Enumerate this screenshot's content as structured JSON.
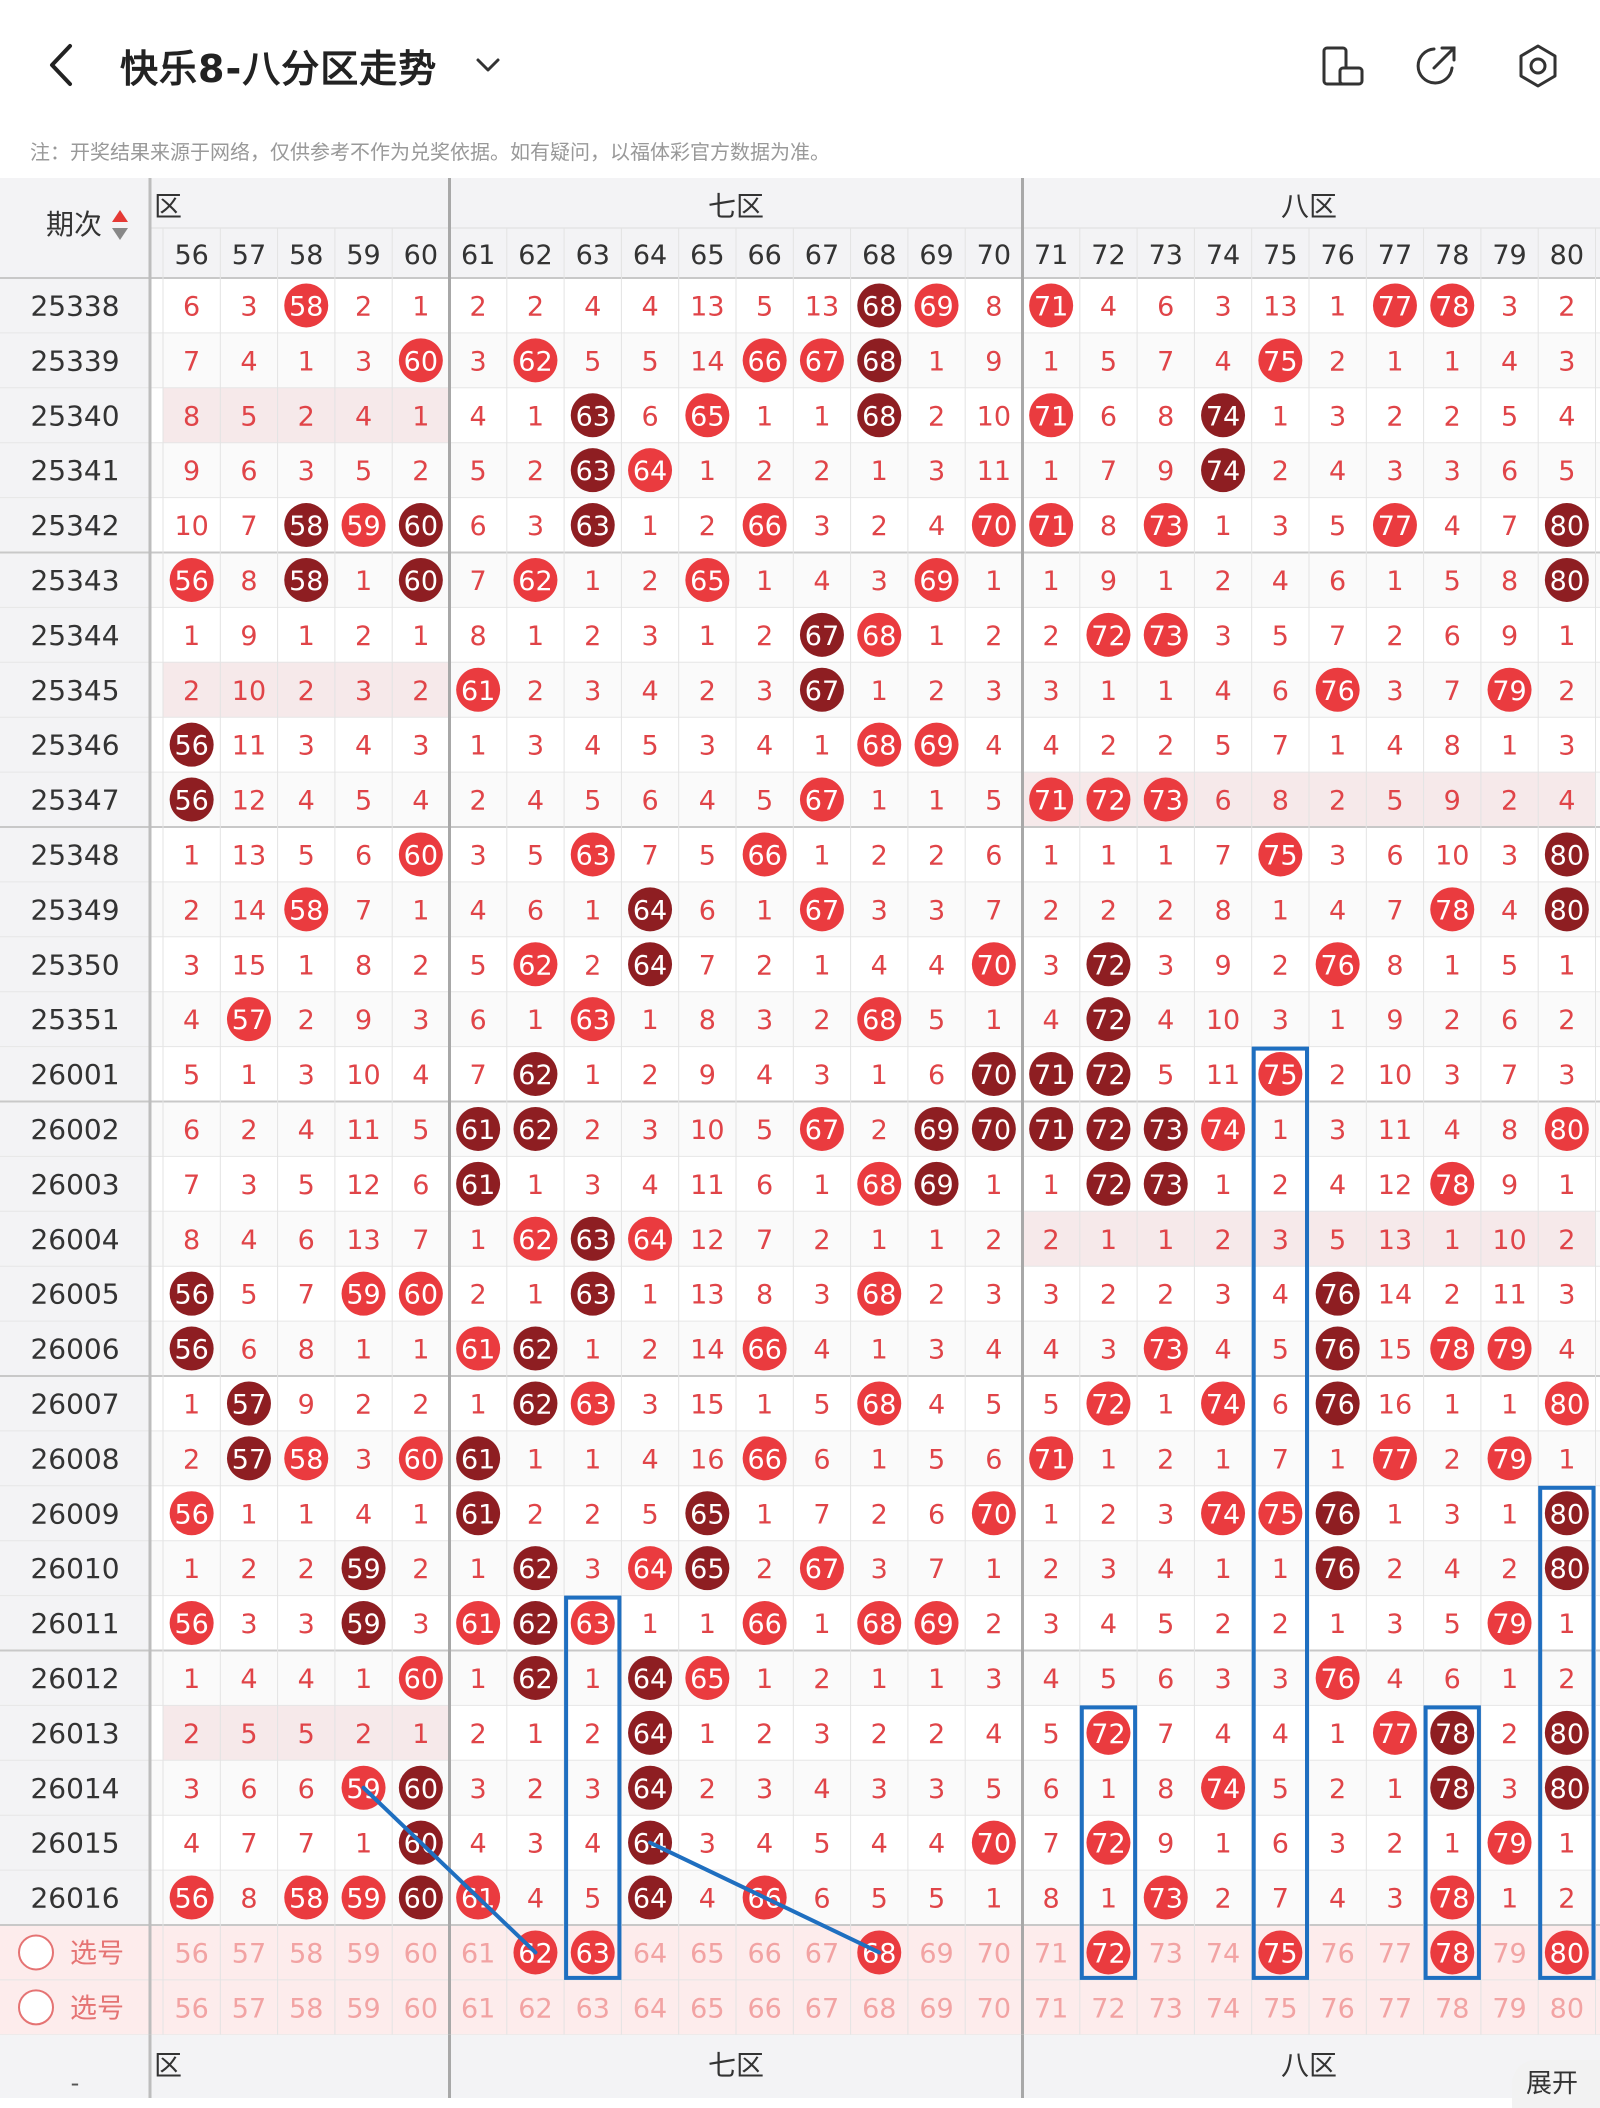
{
  "header": {
    "title": "快乐8-八分区走势",
    "icons": [
      "back-arrow-icon",
      "chevron-down-icon",
      "phone-rotate-icon",
      "share-icon",
      "settings-icon"
    ]
  },
  "note": "注：开奖结果来源于网络，仅供参考不作为兑奖依据。如有疑问，以福体彩官方数据为准。",
  "table": {
    "period_header": "期次",
    "zones": [
      {
        "label": "六区",
        "shown": "区"
      },
      {
        "label": "七区",
        "shown": "七区"
      },
      {
        "label": "八区",
        "shown": "八区"
      }
    ],
    "columns": [
      56,
      57,
      58,
      59,
      60,
      61,
      62,
      63,
      64,
      65,
      66,
      67,
      68,
      69,
      70,
      71,
      72,
      73,
      74,
      75,
      76,
      77,
      78,
      79,
      80
    ],
    "rows": [
      {
        "period": "25338",
        "cells": [
          6,
          3,
          58,
          2,
          1,
          2,
          2,
          4,
          4,
          13,
          5,
          13,
          68,
          69,
          8,
          71,
          4,
          6,
          3,
          13,
          1,
          77,
          78,
          3,
          2
        ]
      },
      {
        "period": "25339",
        "cells": [
          7,
          4,
          1,
          3,
          60,
          3,
          62,
          5,
          5,
          14,
          66,
          67,
          68,
          1,
          9,
          1,
          5,
          7,
          4,
          75,
          2,
          1,
          1,
          4,
          3
        ]
      },
      {
        "period": "25340",
        "cells": [
          8,
          5,
          2,
          4,
          1,
          4,
          1,
          63,
          6,
          65,
          1,
          1,
          68,
          2,
          10,
          71,
          6,
          8,
          74,
          1,
          3,
          2,
          2,
          5,
          4
        ]
      },
      {
        "period": "25341",
        "cells": [
          9,
          6,
          3,
          5,
          2,
          5,
          2,
          63,
          64,
          1,
          2,
          2,
          1,
          3,
          11,
          1,
          7,
          9,
          74,
          2,
          4,
          3,
          3,
          6,
          5
        ]
      },
      {
        "period": "25342",
        "cells": [
          10,
          7,
          58,
          59,
          60,
          6,
          3,
          63,
          1,
          2,
          66,
          3,
          2,
          4,
          70,
          71,
          8,
          73,
          1,
          3,
          5,
          77,
          4,
          7,
          80
        ]
      },
      {
        "period": "25343",
        "cells": [
          56,
          8,
          58,
          1,
          60,
          7,
          62,
          1,
          2,
          65,
          1,
          4,
          3,
          69,
          1,
          1,
          9,
          1,
          2,
          4,
          6,
          1,
          5,
          8,
          80
        ]
      },
      {
        "period": "25344",
        "cells": [
          1,
          9,
          1,
          2,
          1,
          8,
          1,
          2,
          3,
          1,
          2,
          67,
          68,
          1,
          2,
          2,
          72,
          73,
          3,
          5,
          7,
          2,
          6,
          9,
          1
        ]
      },
      {
        "period": "25345",
        "cells": [
          2,
          10,
          2,
          3,
          2,
          61,
          2,
          3,
          4,
          2,
          3,
          67,
          1,
          2,
          3,
          3,
          1,
          1,
          4,
          6,
          76,
          3,
          7,
          79,
          2
        ]
      },
      {
        "period": "25346",
        "cells": [
          56,
          11,
          3,
          4,
          3,
          1,
          3,
          4,
          5,
          3,
          4,
          1,
          68,
          69,
          4,
          4,
          2,
          2,
          5,
          7,
          1,
          4,
          8,
          1,
          3
        ]
      },
      {
        "period": "25347",
        "cells": [
          56,
          12,
          4,
          5,
          4,
          2,
          4,
          5,
          6,
          4,
          5,
          67,
          1,
          1,
          5,
          71,
          72,
          73,
          6,
          8,
          2,
          5,
          9,
          2,
          4
        ]
      },
      {
        "period": "25348",
        "cells": [
          1,
          13,
          5,
          6,
          60,
          3,
          5,
          63,
          7,
          5,
          66,
          1,
          2,
          2,
          6,
          1,
          1,
          1,
          7,
          75,
          3,
          6,
          10,
          3,
          80
        ]
      },
      {
        "period": "25349",
        "cells": [
          2,
          14,
          58,
          7,
          1,
          4,
          6,
          1,
          64,
          6,
          1,
          67,
          3,
          3,
          7,
          2,
          2,
          2,
          8,
          1,
          4,
          7,
          78,
          4,
          80
        ]
      },
      {
        "period": "25350",
        "cells": [
          3,
          15,
          1,
          8,
          2,
          5,
          62,
          2,
          64,
          7,
          2,
          1,
          4,
          4,
          70,
          3,
          72,
          3,
          9,
          2,
          76,
          8,
          1,
          5,
          1
        ]
      },
      {
        "period": "25351",
        "cells": [
          4,
          57,
          2,
          9,
          3,
          6,
          1,
          63,
          1,
          8,
          3,
          2,
          68,
          5,
          1,
          4,
          72,
          4,
          10,
          3,
          1,
          9,
          2,
          6,
          2
        ]
      },
      {
        "period": "26001",
        "cells": [
          5,
          1,
          3,
          10,
          4,
          7,
          62,
          1,
          2,
          9,
          4,
          3,
          1,
          6,
          70,
          71,
          72,
          5,
          11,
          75,
          2,
          10,
          3,
          7,
          3
        ]
      },
      {
        "period": "26002",
        "cells": [
          6,
          2,
          4,
          11,
          5,
          61,
          62,
          2,
          3,
          10,
          5,
          67,
          2,
          69,
          70,
          71,
          72,
          73,
          74,
          1,
          3,
          11,
          4,
          8,
          80
        ]
      },
      {
        "period": "26003",
        "cells": [
          7,
          3,
          5,
          12,
          6,
          61,
          1,
          3,
          4,
          11,
          6,
          1,
          68,
          69,
          1,
          1,
          72,
          73,
          1,
          2,
          4,
          12,
          78,
          9,
          1
        ]
      },
      {
        "period": "26004",
        "cells": [
          8,
          4,
          6,
          13,
          7,
          1,
          62,
          63,
          64,
          12,
          7,
          2,
          1,
          1,
          2,
          2,
          1,
          1,
          2,
          3,
          5,
          13,
          1,
          10,
          2
        ]
      },
      {
        "period": "26005",
        "cells": [
          56,
          5,
          7,
          59,
          60,
          2,
          1,
          63,
          1,
          13,
          8,
          3,
          68,
          2,
          3,
          3,
          2,
          2,
          3,
          4,
          76,
          14,
          2,
          11,
          3
        ]
      },
      {
        "period": "26006",
        "cells": [
          56,
          6,
          8,
          1,
          1,
          61,
          62,
          1,
          2,
          14,
          66,
          4,
          1,
          3,
          4,
          4,
          3,
          73,
          4,
          5,
          76,
          15,
          78,
          79,
          4
        ]
      },
      {
        "period": "26007",
        "cells": [
          1,
          57,
          9,
          2,
          2,
          1,
          62,
          63,
          3,
          15,
          1,
          5,
          68,
          4,
          5,
          5,
          72,
          1,
          74,
          6,
          76,
          16,
          1,
          1,
          80
        ]
      },
      {
        "period": "26008",
        "cells": [
          2,
          57,
          58,
          3,
          60,
          61,
          1,
          1,
          4,
          16,
          66,
          6,
          1,
          5,
          6,
          71,
          1,
          2,
          1,
          7,
          1,
          77,
          2,
          79,
          1
        ]
      },
      {
        "period": "26009",
        "cells": [
          56,
          1,
          1,
          4,
          1,
          61,
          2,
          2,
          5,
          65,
          1,
          7,
          2,
          6,
          70,
          1,
          2,
          3,
          74,
          75,
          76,
          1,
          3,
          1,
          80
        ]
      },
      {
        "period": "26010",
        "cells": [
          1,
          2,
          2,
          59,
          2,
          1,
          62,
          3,
          64,
          65,
          2,
          67,
          3,
          7,
          1,
          2,
          3,
          4,
          1,
          1,
          76,
          2,
          4,
          2,
          80
        ]
      },
      {
        "period": "26011",
        "cells": [
          56,
          3,
          3,
          59,
          3,
          61,
          62,
          63,
          1,
          1,
          66,
          1,
          68,
          69,
          2,
          3,
          4,
          5,
          2,
          2,
          1,
          3,
          5,
          79,
          1
        ]
      },
      {
        "period": "26012",
        "cells": [
          1,
          4,
          4,
          1,
          60,
          1,
          62,
          1,
          64,
          65,
          1,
          2,
          1,
          1,
          3,
          4,
          5,
          6,
          3,
          3,
          76,
          4,
          6,
          1,
          2
        ]
      },
      {
        "period": "26013",
        "cells": [
          2,
          5,
          5,
          2,
          1,
          2,
          1,
          2,
          64,
          1,
          2,
          3,
          2,
          2,
          4,
          5,
          72,
          7,
          4,
          4,
          1,
          77,
          78,
          2,
          80
        ]
      },
      {
        "period": "26014",
        "cells": [
          3,
          6,
          6,
          59,
          60,
          3,
          2,
          3,
          64,
          2,
          3,
          4,
          3,
          3,
          5,
          6,
          1,
          8,
          74,
          5,
          2,
          1,
          78,
          3,
          80
        ]
      },
      {
        "period": "26015",
        "cells": [
          4,
          7,
          7,
          1,
          60,
          4,
          3,
          4,
          64,
          3,
          4,
          5,
          4,
          4,
          70,
          7,
          72,
          9,
          1,
          6,
          3,
          2,
          1,
          79,
          1
        ]
      },
      {
        "period": "26016",
        "cells": [
          56,
          8,
          58,
          59,
          60,
          61,
          4,
          5,
          64,
          4,
          66,
          6,
          5,
          5,
          1,
          8,
          1,
          73,
          2,
          7,
          4,
          3,
          78,
          1,
          2
        ]
      }
    ],
    "select_label": "选号",
    "select_rows": [
      {
        "selected": [
          62,
          63,
          68,
          72,
          75,
          78,
          80
        ]
      },
      {
        "selected": []
      }
    ],
    "footer_zone_labels": [
      "区",
      "七区",
      "八区"
    ],
    "footer_left": "-"
  },
  "expand_label": "展开",
  "colors": {
    "red_ball": "#ea3b3f",
    "dark_ball": "#8e1e22",
    "number": "#e04448",
    "box": "#1f6fc0",
    "select_bg": "#fdecec"
  }
}
